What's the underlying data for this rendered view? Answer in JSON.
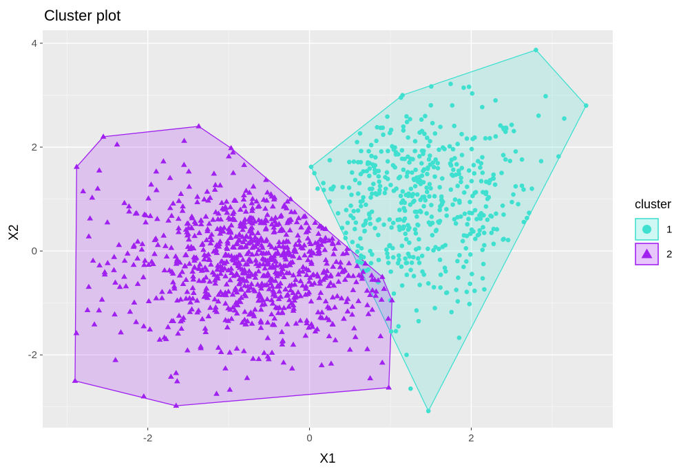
{
  "chart_data": {
    "type": "scatter",
    "title": "Cluster plot",
    "xlabel": "X1",
    "ylabel": "X2",
    "xlim": [
      -3.3,
      3.75
    ],
    "ylim": [
      -3.4,
      4.25
    ],
    "x_ticks": [
      -2,
      0,
      2
    ],
    "y_ticks": [
      -2,
      0,
      2,
      4
    ],
    "grid": true,
    "legend": {
      "title": "cluster",
      "placement": "right"
    },
    "series": [
      {
        "name": "1",
        "shape": "circle",
        "color": "#40E0D0",
        "hull": [
          [
            2.8,
            3.87
          ],
          [
            3.42,
            2.8
          ],
          [
            1.47,
            -3.08
          ],
          [
            0.02,
            1.62
          ],
          [
            1.15,
            3.0
          ]
        ],
        "center": [
          1.3,
          0.95
        ],
        "spread": [
          0.75,
          0.95
        ],
        "count": 480,
        "points": [
          [
            2.3,
            2.9
          ],
          [
            2.92,
            2.98
          ],
          [
            3.15,
            2.55
          ],
          [
            3.08,
            1.82
          ],
          [
            2.75,
            1.2
          ],
          [
            1.85,
            -1.67
          ],
          [
            1.2,
            -2.0
          ],
          [
            1.25,
            -2.65
          ],
          [
            1.55,
            -1.1
          ],
          [
            1.7,
            -0.8
          ],
          [
            2.15,
            -0.25
          ],
          [
            2.25,
            0.35
          ],
          [
            2.4,
            0.7
          ],
          [
            0.1,
            1.2
          ],
          [
            0.25,
            0.95
          ],
          [
            0.45,
            0.35
          ],
          [
            0.6,
            0.1
          ],
          [
            0.85,
            -0.6
          ],
          [
            1.0,
            -0.95
          ],
          [
            1.1,
            -1.45
          ]
        ]
      },
      {
        "name": "2",
        "shape": "triangle",
        "color": "#A020F0",
        "hull": [
          [
            -2.9,
            -2.5
          ],
          [
            -2.88,
            1.62
          ],
          [
            -2.55,
            2.2
          ],
          [
            -1.37,
            2.4
          ],
          [
            -0.97,
            1.98
          ],
          [
            0.9,
            -0.5
          ],
          [
            1.02,
            -0.95
          ],
          [
            0.98,
            -2.63
          ],
          [
            -1.65,
            -2.98
          ]
        ],
        "center": [
          -0.62,
          -0.22
        ],
        "spread": [
          0.8,
          0.78
        ],
        "count": 900,
        "points": [
          [
            -2.6,
            1.55
          ],
          [
            -2.8,
            1.15
          ],
          [
            -2.38,
            2.05
          ],
          [
            -1.55,
            2.12
          ],
          [
            -2.4,
            -2.1
          ],
          [
            -2.05,
            -2.8
          ],
          [
            -2.05,
            -1.45
          ],
          [
            -2.27,
            -0.68
          ],
          [
            -2.25,
            -0.05
          ],
          [
            -2.5,
            0.55
          ],
          [
            -2.62,
            1.2
          ],
          [
            -1.65,
            -2.35
          ],
          [
            -1.15,
            -2.75
          ],
          [
            0.75,
            -2.45
          ],
          [
            0.9,
            -2.15
          ],
          [
            0.15,
            -2.2
          ],
          [
            0.5,
            -1.9
          ],
          [
            -2.73,
            0.28
          ],
          [
            -2.15,
            0.72
          ]
        ]
      }
    ]
  }
}
